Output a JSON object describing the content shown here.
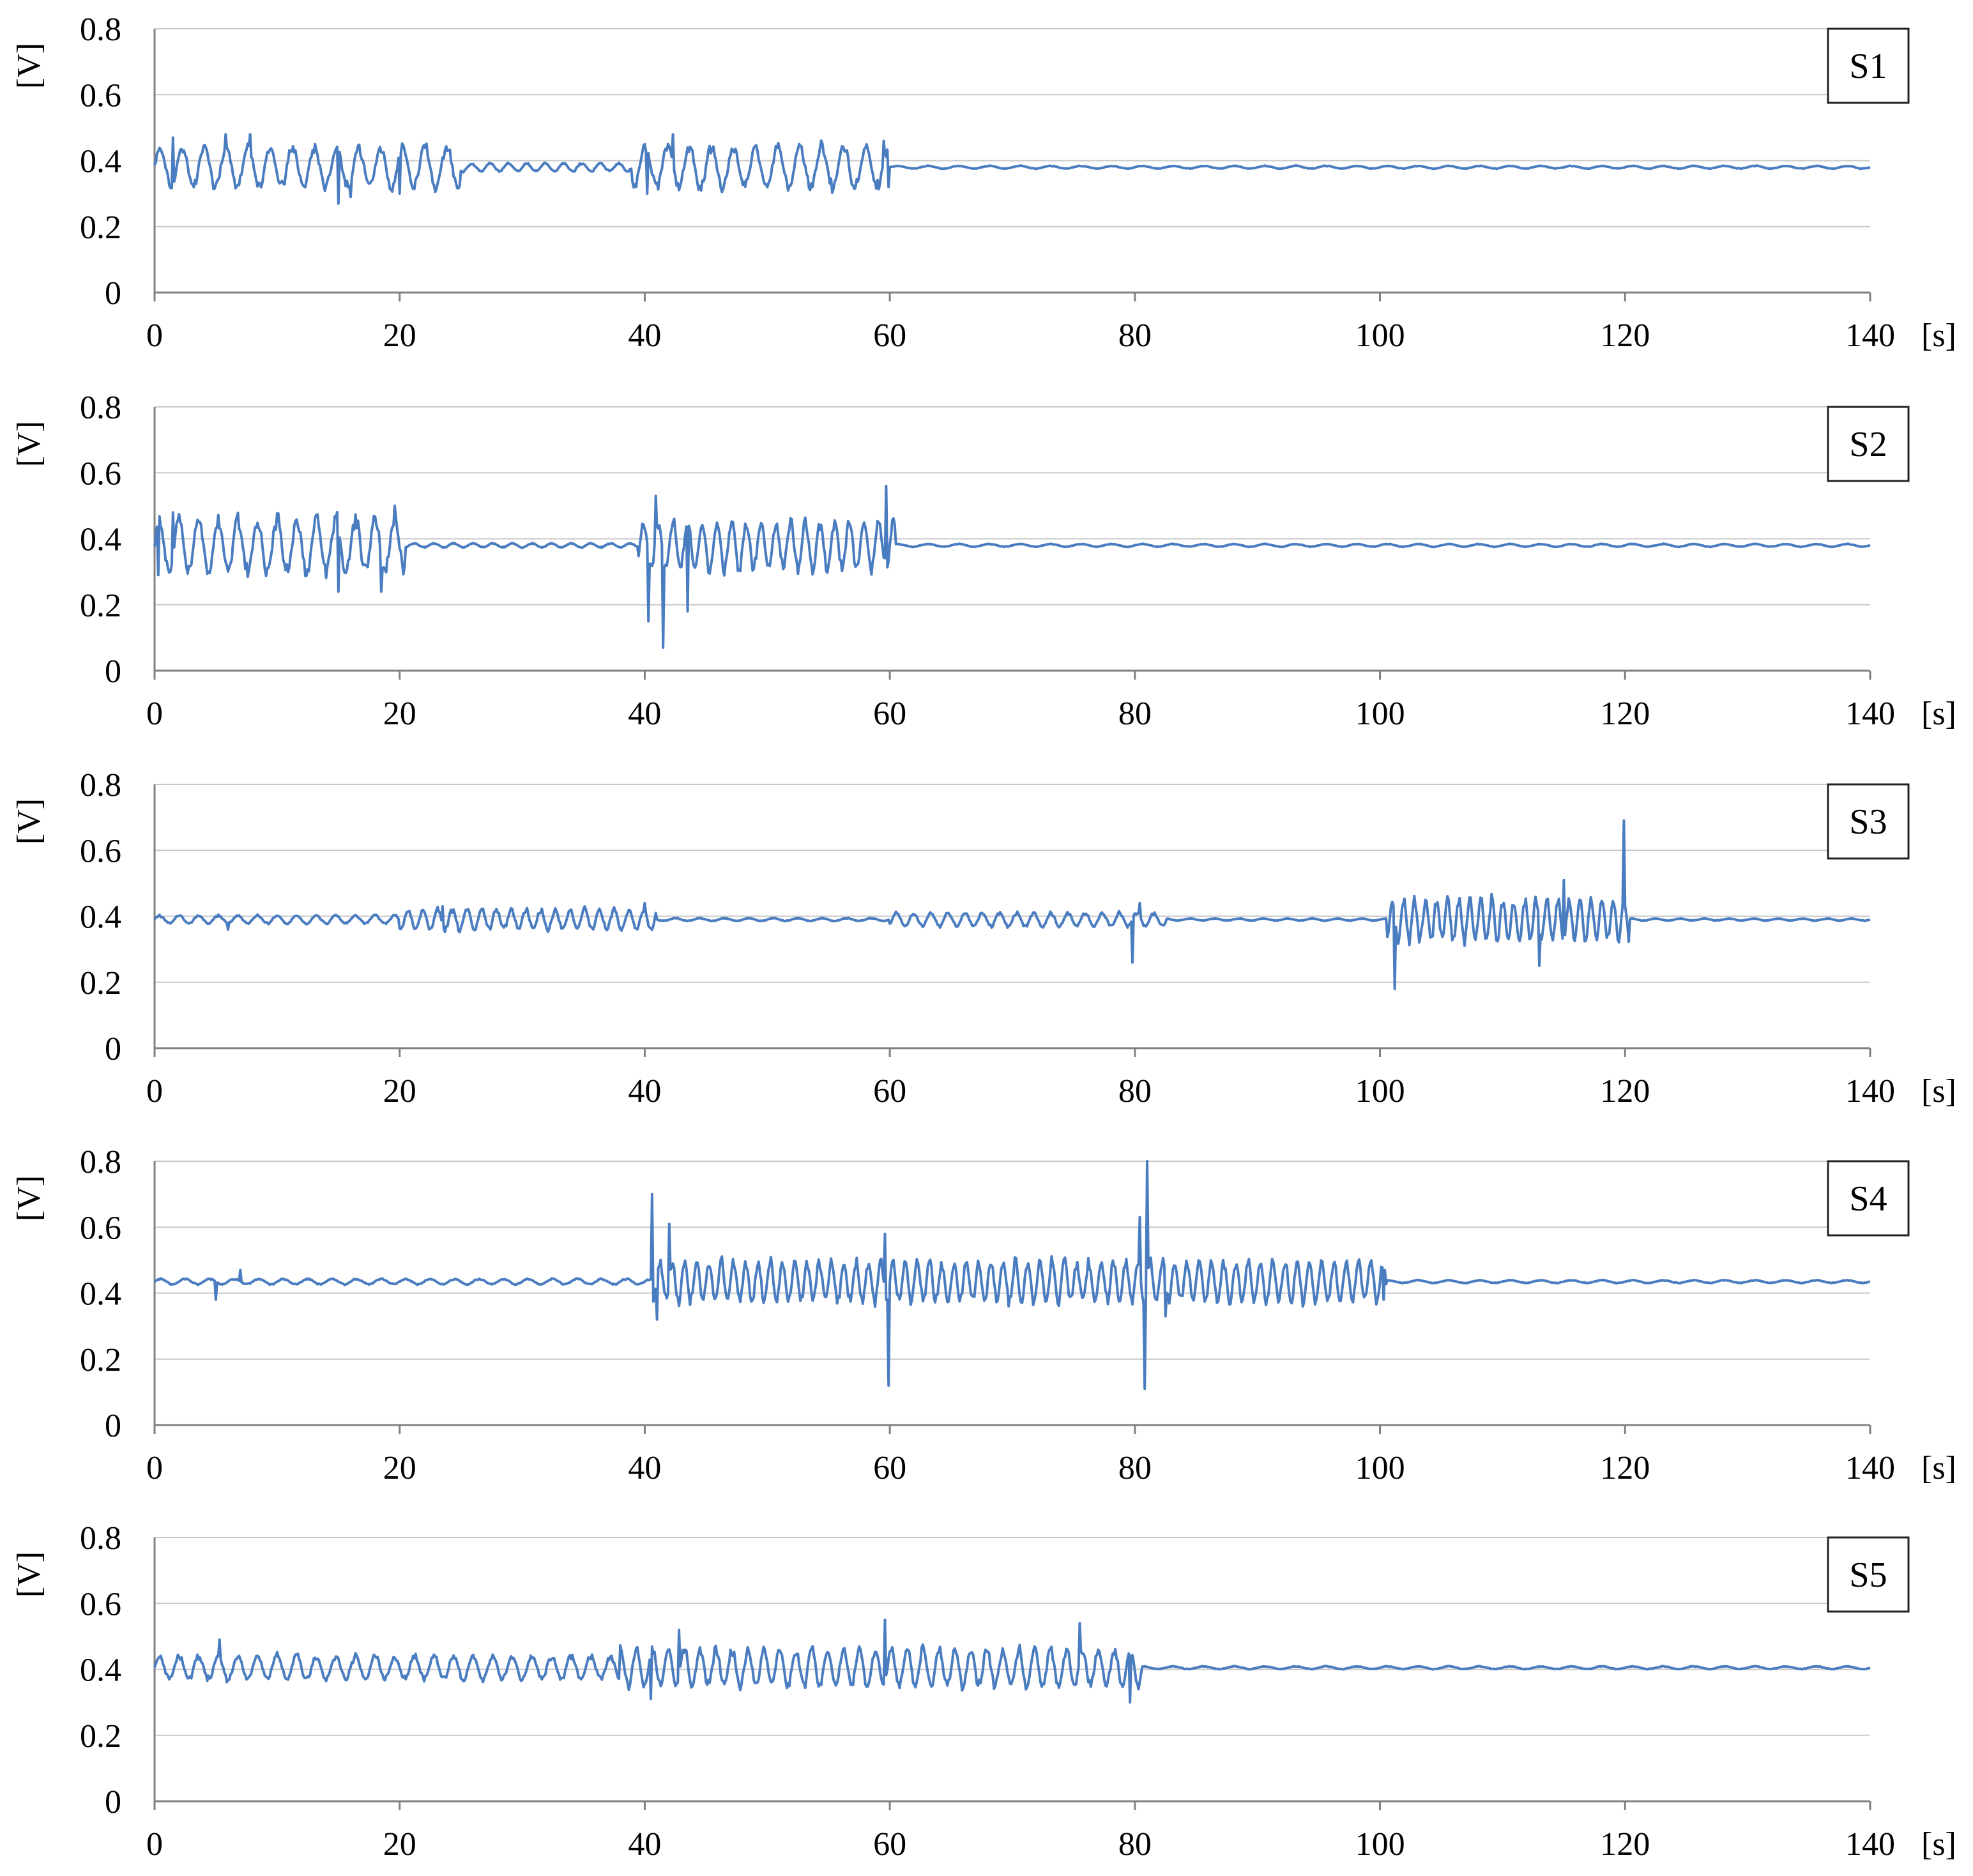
{
  "colors": {
    "line": "#4a7cc0",
    "grid": "#c8c8c8",
    "axis": "#808080",
    "text": "#000000"
  },
  "chart_data": [
    {
      "type": "line",
      "title": "S1",
      "xlabel": "[s]",
      "ylabel": "[V]",
      "xlim": [
        0,
        140
      ],
      "ylim": [
        0,
        0.8
      ],
      "x_ticks": [
        "0",
        "20",
        "40",
        "60",
        "80",
        "100",
        "120",
        "140"
      ],
      "y_ticks": [
        "0",
        "0.2",
        "0.4",
        "0.6",
        "0.8"
      ],
      "baseline": 0.38,
      "segments": [
        {
          "from": 0,
          "to": 25,
          "amplitude": 0.06,
          "period": 1.8
        },
        {
          "from": 25,
          "to": 39,
          "amplitude": 0.012,
          "period": 1.5
        },
        {
          "from": 39,
          "to": 60,
          "amplitude": 0.06,
          "period": 1.8
        },
        {
          "from": 60,
          "to": 140,
          "amplitude": 0.004,
          "period": 2.5
        }
      ],
      "spikes": [
        {
          "x": 1.5,
          "y": 0.47
        },
        {
          "x": 5.8,
          "y": 0.48
        },
        {
          "x": 7.8,
          "y": 0.48
        },
        {
          "x": 15.0,
          "y": 0.27
        },
        {
          "x": 16.0,
          "y": 0.29
        },
        {
          "x": 20.0,
          "y": 0.3
        },
        {
          "x": 40.2,
          "y": 0.3
        },
        {
          "x": 42.3,
          "y": 0.48
        },
        {
          "x": 59.5,
          "y": 0.46
        },
        {
          "x": 59.9,
          "y": 0.32
        }
      ]
    },
    {
      "type": "line",
      "title": "S2",
      "xlabel": "[s]",
      "ylabel": "[V]",
      "xlim": [
        0,
        140
      ],
      "ylim": [
        0,
        0.8
      ],
      "x_ticks": [
        "0",
        "20",
        "40",
        "60",
        "80",
        "100",
        "120",
        "140"
      ],
      "y_ticks": [
        "0",
        "0.2",
        "0.4",
        "0.6",
        "0.8"
      ],
      "baseline": 0.38,
      "segments": [
        {
          "from": 0,
          "to": 20.5,
          "amplitude": 0.08,
          "period": 1.6
        },
        {
          "from": 20.5,
          "to": 39.5,
          "amplitude": 0.006,
          "period": 1.6
        },
        {
          "from": 39.5,
          "to": 60.5,
          "amplitude": 0.07,
          "period": 1.2
        },
        {
          "from": 60.5,
          "to": 140,
          "amplitude": 0.004,
          "period": 2.5
        }
      ],
      "spikes": [
        {
          "x": 0.3,
          "y": 0.29
        },
        {
          "x": 1.5,
          "y": 0.48
        },
        {
          "x": 15.0,
          "y": 0.24
        },
        {
          "x": 18.5,
          "y": 0.24
        },
        {
          "x": 19.6,
          "y": 0.5
        },
        {
          "x": 40.3,
          "y": 0.15
        },
        {
          "x": 40.9,
          "y": 0.53
        },
        {
          "x": 41.5,
          "y": 0.07
        },
        {
          "x": 43.5,
          "y": 0.18
        },
        {
          "x": 59.7,
          "y": 0.56
        }
      ]
    },
    {
      "type": "line",
      "title": "S3",
      "xlabel": "[s]",
      "ylabel": "[V]",
      "xlim": [
        0,
        140
      ],
      "ylim": [
        0,
        0.8
      ],
      "x_ticks": [
        "0",
        "20",
        "40",
        "60",
        "80",
        "100",
        "120",
        "140"
      ],
      "y_ticks": [
        "0",
        "0.2",
        "0.4",
        "0.6",
        "0.8"
      ],
      "baseline": 0.39,
      "segments": [
        {
          "from": 0,
          "to": 20,
          "amplitude": 0.012,
          "period": 1.6
        },
        {
          "from": 20,
          "to": 41,
          "amplitude": 0.03,
          "period": 1.2
        },
        {
          "from": 41,
          "to": 60,
          "amplitude": 0.004,
          "period": 2
        },
        {
          "from": 60,
          "to": 82.5,
          "amplitude": 0.02,
          "period": 1.4
        },
        {
          "from": 82.5,
          "to": 100.5,
          "amplitude": 0.003,
          "period": 2
        },
        {
          "from": 100.5,
          "to": 120.3,
          "amplitude": 0.06,
          "period": 0.9
        },
        {
          "from": 120.3,
          "to": 140,
          "amplitude": 0.003,
          "period": 2
        }
      ],
      "spikes": [
        {
          "x": 6.0,
          "y": 0.36
        },
        {
          "x": 23.5,
          "y": 0.43
        },
        {
          "x": 40.0,
          "y": 0.44
        },
        {
          "x": 79.8,
          "y": 0.26
        },
        {
          "x": 80.4,
          "y": 0.44
        },
        {
          "x": 101.2,
          "y": 0.18
        },
        {
          "x": 113.0,
          "y": 0.25
        },
        {
          "x": 115.0,
          "y": 0.51
        },
        {
          "x": 119.9,
          "y": 0.69
        }
      ]
    },
    {
      "type": "line",
      "title": "S4",
      "xlabel": "[s]",
      "ylabel": "[V]",
      "xlim": [
        0,
        140
      ],
      "ylim": [
        0,
        0.8
      ],
      "x_ticks": [
        "0",
        "20",
        "40",
        "60",
        "80",
        "100",
        "120",
        "140"
      ],
      "y_ticks": [
        "0",
        "0.2",
        "0.4",
        "0.6",
        "0.8"
      ],
      "baseline": 0.435,
      "segments": [
        {
          "from": 0,
          "to": 40.5,
          "amplitude": 0.008,
          "period": 2
        },
        {
          "from": 40.5,
          "to": 100.5,
          "amplitude": 0.06,
          "period": 1.0
        },
        {
          "from": 100.5,
          "to": 140,
          "amplitude": 0.004,
          "period": 2.5
        }
      ],
      "spikes": [
        {
          "x": 5.0,
          "y": 0.38
        },
        {
          "x": 7.0,
          "y": 0.47
        },
        {
          "x": 40.6,
          "y": 0.7
        },
        {
          "x": 41.0,
          "y": 0.32
        },
        {
          "x": 42.0,
          "y": 0.61
        },
        {
          "x": 59.6,
          "y": 0.58
        },
        {
          "x": 59.9,
          "y": 0.12
        },
        {
          "x": 80.4,
          "y": 0.63
        },
        {
          "x": 80.8,
          "y": 0.11
        },
        {
          "x": 81.0,
          "y": 0.8
        },
        {
          "x": 82.5,
          "y": 0.33
        },
        {
          "x": 100.3,
          "y": 0.38
        }
      ]
    },
    {
      "type": "line",
      "title": "S5",
      "xlabel": "[s]",
      "ylabel": "[V]",
      "xlim": [
        0,
        140
      ],
      "ylim": [
        0,
        0.8
      ],
      "x_ticks": [
        "0",
        "20",
        "40",
        "60",
        "80",
        "100",
        "120",
        "140"
      ],
      "y_ticks": [
        "0",
        "0.2",
        "0.4",
        "0.6",
        "0.8"
      ],
      "baseline": 0.405,
      "segments": [
        {
          "from": 0,
          "to": 38,
          "amplitude": 0.035,
          "period": 1.6
        },
        {
          "from": 38,
          "to": 80.5,
          "amplitude": 0.055,
          "period": 1.3
        },
        {
          "from": 80.5,
          "to": 140,
          "amplitude": 0.004,
          "period": 2.5
        }
      ],
      "spikes": [
        {
          "x": 5.3,
          "y": 0.49
        },
        {
          "x": 40.5,
          "y": 0.31
        },
        {
          "x": 42.8,
          "y": 0.52
        },
        {
          "x": 59.6,
          "y": 0.55
        },
        {
          "x": 75.5,
          "y": 0.54
        },
        {
          "x": 79.6,
          "y": 0.3
        }
      ]
    }
  ]
}
